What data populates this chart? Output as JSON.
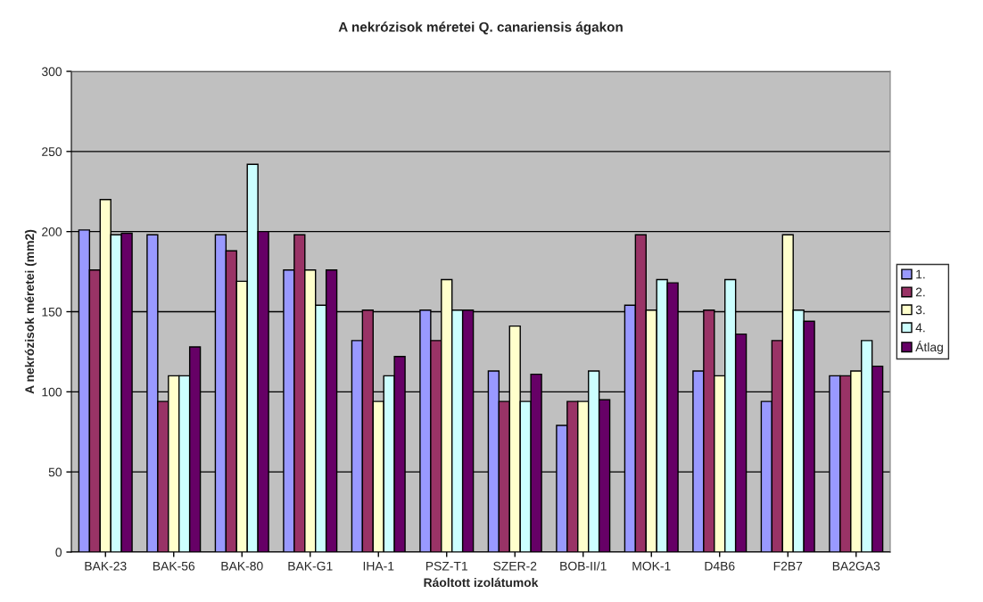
{
  "chart_data": {
    "type": "bar",
    "title": "A nekrózisok méretei Q. canariensis ágakon",
    "xlabel": "Ráoltott izolátumok",
    "ylabel": "A nekrózisok méretei (mm2)",
    "categories": [
      "BAK-23",
      "BAK-56",
      "BAK-80",
      "BAK-G1",
      "IHA-1",
      "PSZ-T1",
      "SZER-2",
      "BOB-II/1",
      "MOK-1",
      "D4B6",
      "F2B7",
      "BA2GA3"
    ],
    "series": [
      {
        "name": "1.",
        "color": "#9999ff",
        "values": [
          201,
          198,
          198,
          176,
          132,
          151,
          113,
          79,
          154,
          113,
          94,
          110
        ]
      },
      {
        "name": "2.",
        "color": "#993366",
        "values": [
          176,
          94,
          188,
          198,
          151,
          132,
          94,
          94,
          198,
          151,
          132,
          110
        ]
      },
      {
        "name": "3.",
        "color": "#ffffcc",
        "values": [
          220,
          110,
          169,
          176,
          94,
          170,
          141,
          94,
          151,
          110,
          198,
          113
        ]
      },
      {
        "name": "4.",
        "color": "#ccffff",
        "values": [
          198,
          110,
          242,
          154,
          110,
          151,
          94,
          113,
          170,
          170,
          151,
          132
        ]
      },
      {
        "name": "Átlag",
        "color": "#660066",
        "values": [
          199,
          128,
          200,
          176,
          122,
          151,
          111,
          95,
          168,
          136,
          144,
          116
        ]
      }
    ],
    "ylim": [
      0,
      300
    ],
    "yticks": [
      0,
      50,
      100,
      150,
      200,
      250,
      300
    ],
    "grid": "y",
    "legend": "right"
  }
}
